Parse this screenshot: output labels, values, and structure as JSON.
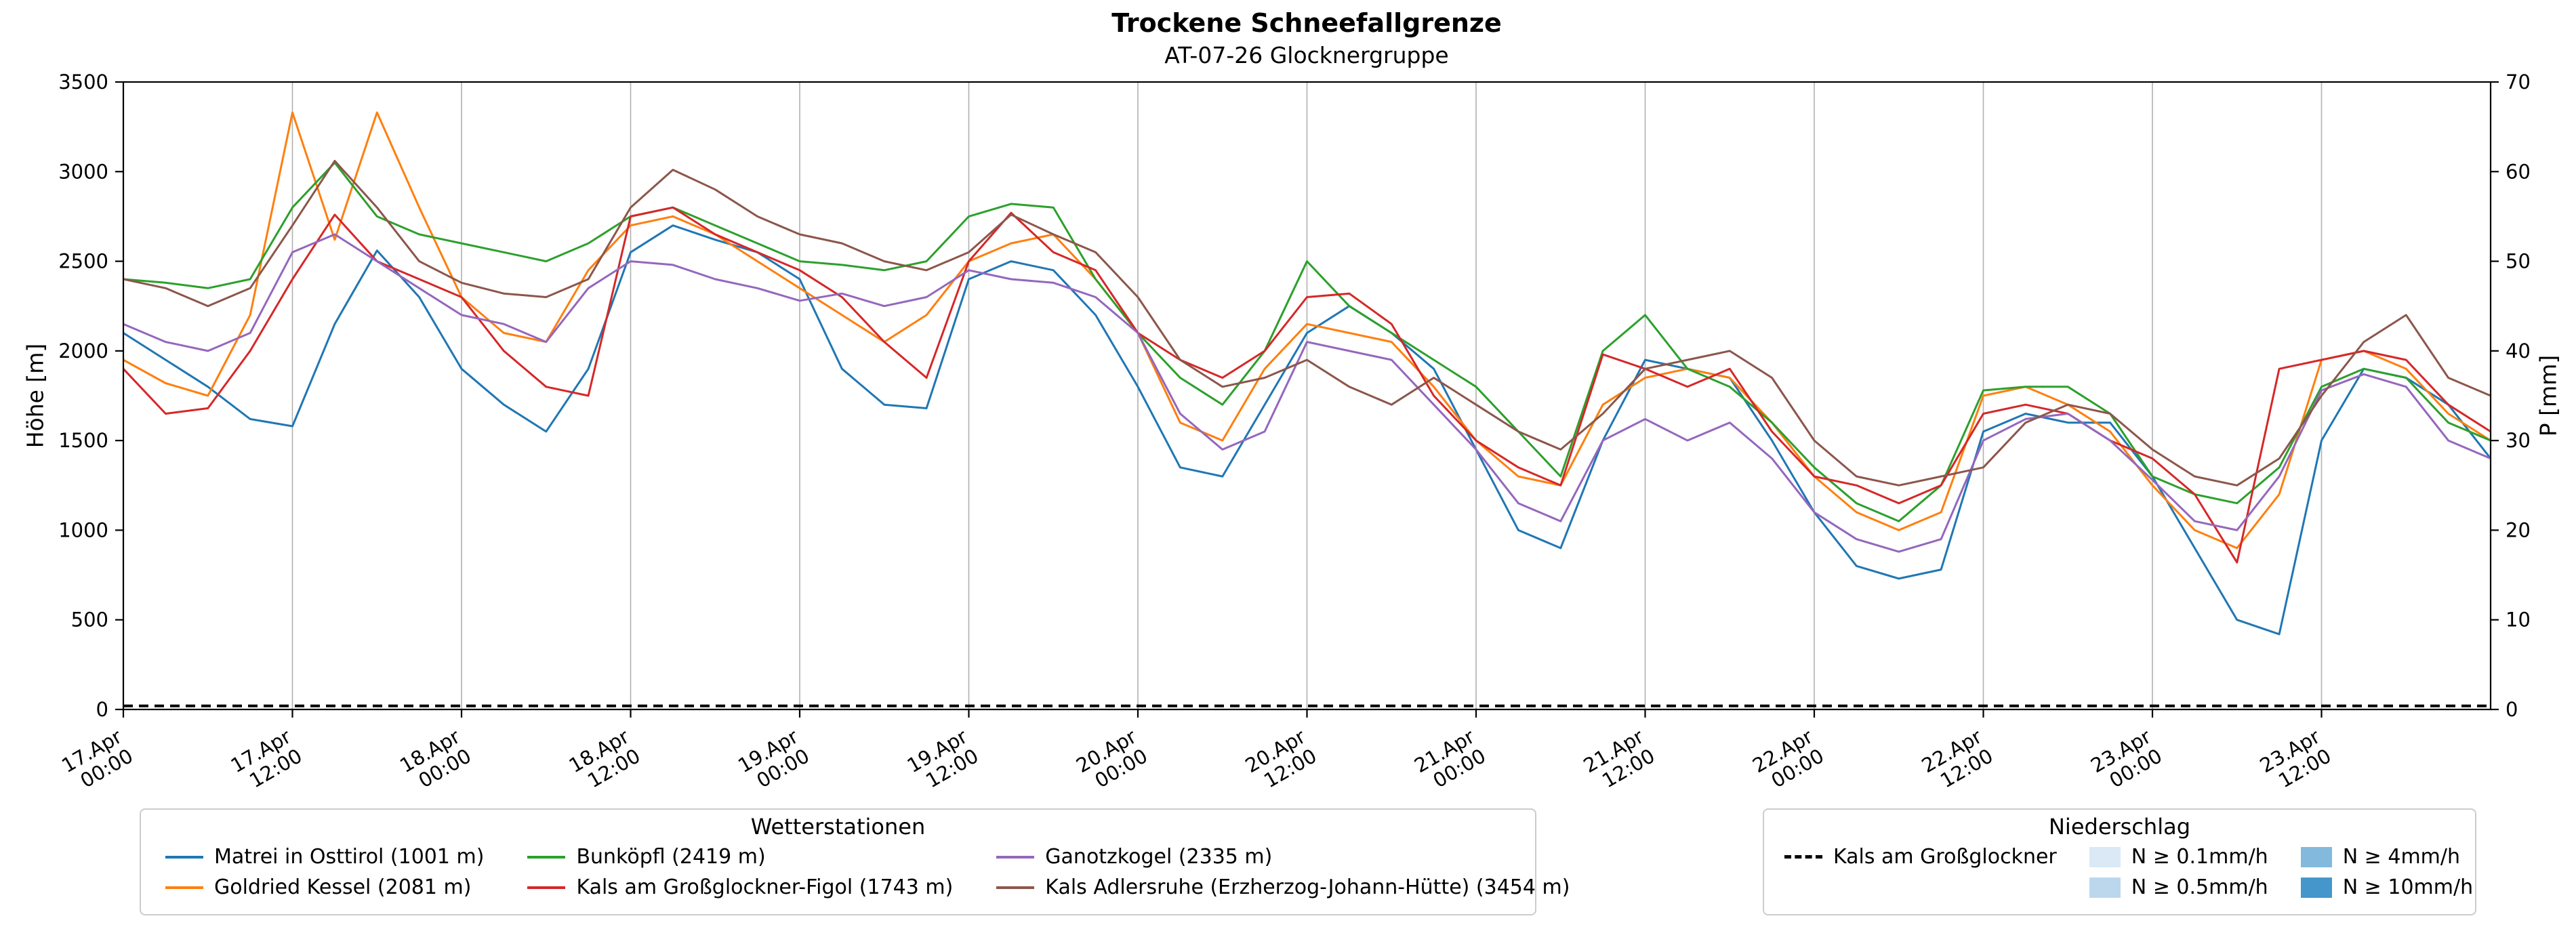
{
  "chart_data": {
    "type": "line",
    "title": "Trockene Schneefallgrenze",
    "subtitle": "AT-07-26 Glocknergruppe",
    "ylabel_left": "Höhe [m]",
    "ylabel_right": "P [mm]",
    "ylim_left": [
      0,
      3500
    ],
    "ylim_right": [
      0,
      70
    ],
    "yticks_left": [
      0,
      500,
      1000,
      1500,
      2000,
      2500,
      3000,
      3500
    ],
    "yticks_right": [
      0,
      10,
      20,
      30,
      40,
      50,
      60,
      70
    ],
    "x_range_hours": [
      0,
      168
    ],
    "x_step_hours": 3,
    "grid": "vertical",
    "xticks": [
      {
        "hour": 0,
        "line1": "17.Apr",
        "line2": "00:00"
      },
      {
        "hour": 12,
        "line1": "17.Apr",
        "line2": "12:00"
      },
      {
        "hour": 24,
        "line1": "18.Apr",
        "line2": "00:00"
      },
      {
        "hour": 36,
        "line1": "18.Apr",
        "line2": "12:00"
      },
      {
        "hour": 48,
        "line1": "19.Apr",
        "line2": "00:00"
      },
      {
        "hour": 60,
        "line1": "19.Apr",
        "line2": "12:00"
      },
      {
        "hour": 72,
        "line1": "20.Apr",
        "line2": "00:00"
      },
      {
        "hour": 84,
        "line1": "20.Apr",
        "line2": "12:00"
      },
      {
        "hour": 96,
        "line1": "21.Apr",
        "line2": "00:00"
      },
      {
        "hour": 108,
        "line1": "21.Apr",
        "line2": "12:00"
      },
      {
        "hour": 120,
        "line1": "22.Apr",
        "line2": "00:00"
      },
      {
        "hour": 132,
        "line1": "22.Apr",
        "line2": "12:00"
      },
      {
        "hour": 144,
        "line1": "23.Apr",
        "line2": "00:00"
      },
      {
        "hour": 156,
        "line1": "23.Apr",
        "line2": "12:00"
      }
    ],
    "series": [
      {
        "name": "Matrei in Osttirol (1001 m)",
        "color": "#1f77b4",
        "values": [
          2100,
          1950,
          1800,
          1620,
          1580,
          2150,
          2560,
          2300,
          1900,
          1700,
          1550,
          1900,
          2550,
          2700,
          2620,
          2550,
          2400,
          1900,
          1700,
          1680,
          2400,
          2500,
          2450,
          2200,
          1800,
          1350,
          1300,
          1700,
          2100,
          2250,
          2100,
          1900,
          1450,
          1000,
          900,
          1500,
          1950,
          1900,
          1850,
          1500,
          1100,
          800,
          730,
          780,
          1550,
          1650,
          1600,
          1600,
          1300,
          900,
          500,
          420,
          1500,
          1900,
          1850,
          1700,
          1400
        ]
      },
      {
        "name": "Goldried Kessel (2081 m)",
        "color": "#ff7f0e",
        "values": [
          1950,
          1820,
          1750,
          2200,
          3330,
          2620,
          3330,
          2800,
          2300,
          2100,
          2050,
          2450,
          2700,
          2750,
          2650,
          2500,
          2350,
          2200,
          2050,
          2200,
          2500,
          2600,
          2650,
          2400,
          2100,
          1600,
          1500,
          1900,
          2150,
          2100,
          2050,
          1800,
          1500,
          1300,
          1250,
          1700,
          1850,
          1900,
          1850,
          1600,
          1300,
          1100,
          1000,
          1100,
          1750,
          1800,
          1700,
          1550,
          1250,
          1000,
          900,
          1200,
          1950,
          2000,
          1900,
          1650,
          1500
        ]
      },
      {
        "name": "Bunköpfl (2419 m)",
        "color": "#2ca02c",
        "values": [
          2400,
          2380,
          2350,
          2400,
          2800,
          3050,
          2750,
          2650,
          2600,
          2550,
          2500,
          2600,
          2750,
          2800,
          2700,
          2600,
          2500,
          2480,
          2450,
          2500,
          2750,
          2820,
          2800,
          2400,
          2100,
          1850,
          1700,
          2000,
          2500,
          2250,
          2100,
          1950,
          1800,
          1550,
          1300,
          2000,
          2200,
          1900,
          1800,
          1600,
          1350,
          1150,
          1050,
          1250,
          1780,
          1800,
          1800,
          1650,
          1300,
          1200,
          1150,
          1350,
          1800,
          1900,
          1850,
          1600,
          1500
        ]
      },
      {
        "name": "Kals am Großglockner-Figol (1743 m)",
        "color": "#d62728",
        "values": [
          1900,
          1650,
          1680,
          2000,
          2400,
          2760,
          2500,
          2400,
          2300,
          2000,
          1800,
          1750,
          2750,
          2800,
          2650,
          2550,
          2450,
          2300,
          2050,
          1850,
          2500,
          2770,
          2550,
          2450,
          2100,
          1950,
          1850,
          2000,
          2300,
          2320,
          2150,
          1750,
          1500,
          1350,
          1250,
          1980,
          1900,
          1800,
          1900,
          1550,
          1300,
          1250,
          1150,
          1250,
          1650,
          1700,
          1650,
          1500,
          1400,
          1200,
          820,
          1900,
          1950,
          2000,
          1950,
          1700,
          1550
        ]
      },
      {
        "name": "Ganotzkogel (2335 m)",
        "color": "#9467bd",
        "values": [
          2150,
          2050,
          2000,
          2100,
          2550,
          2650,
          2500,
          2350,
          2200,
          2150,
          2050,
          2350,
          2500,
          2480,
          2400,
          2350,
          2280,
          2320,
          2250,
          2300,
          2450,
          2400,
          2380,
          2300,
          2100,
          1650,
          1450,
          1550,
          2050,
          2000,
          1950,
          1700,
          1450,
          1150,
          1050,
          1500,
          1620,
          1500,
          1600,
          1400,
          1100,
          950,
          880,
          950,
          1500,
          1620,
          1650,
          1500,
          1280,
          1050,
          1000,
          1300,
          1780,
          1870,
          1800,
          1500,
          1400
        ]
      },
      {
        "name": "Kals Adlersruhe (Erzherzog-Johann-Hütte) (3454 m)",
        "color": "#8c564b",
        "values": [
          2400,
          2350,
          2250,
          2350,
          2700,
          3060,
          2800,
          2500,
          2380,
          2320,
          2300,
          2400,
          2800,
          3010,
          2900,
          2750,
          2650,
          2600,
          2500,
          2450,
          2550,
          2760,
          2650,
          2550,
          2300,
          1950,
          1800,
          1850,
          1950,
          1800,
          1700,
          1850,
          1700,
          1550,
          1450,
          1650,
          1900,
          1950,
          2000,
          1850,
          1500,
          1300,
          1250,
          1300,
          1350,
          1600,
          1700,
          1650,
          1450,
          1300,
          1250,
          1400,
          1750,
          2050,
          2200,
          1850,
          1750
        ]
      }
    ],
    "baseline": {
      "name": "Kals am Großglockner",
      "color": "#000000",
      "style": "dashed",
      "value_mm": 0.4
    }
  },
  "legend_stations": {
    "title": "Wetterstationen",
    "display_order": [
      0,
      2,
      4,
      1,
      3,
      5
    ]
  },
  "legend_precip": {
    "title": "Niederschlag",
    "line_label": "Kals am Großglockner",
    "patches": [
      {
        "label": "N ≥ 0.1mm/h",
        "color": "#dbe9f6"
      },
      {
        "label": "N ≥ 0.5mm/h",
        "color": "#bcd7ec"
      },
      {
        "label": "N ≥ 4mm/h",
        "color": "#82b9dc"
      },
      {
        "label": "N ≥ 10mm/h",
        "color": "#4596cb"
      }
    ]
  }
}
